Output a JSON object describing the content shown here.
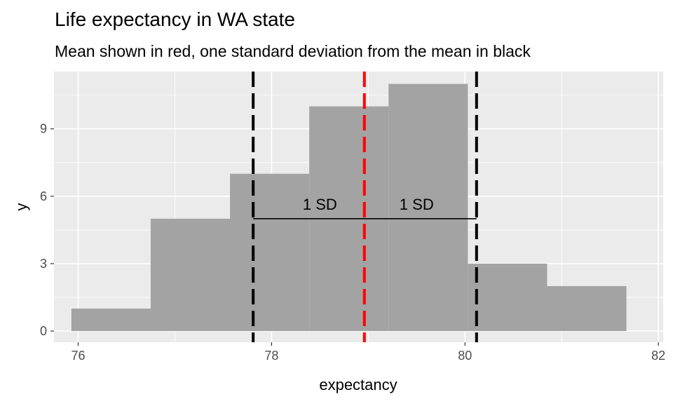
{
  "chart_data": {
    "type": "histogram",
    "title": "Life expectancy in WA state",
    "subtitle": "Mean shown in red, one standard deviation from the mean in black",
    "xlabel": "expectancy",
    "ylabel": "y",
    "xlim": [
      75.75,
      82.05
    ],
    "ylim": [
      -0.5,
      11.55
    ],
    "x_ticks": [
      76,
      78,
      80,
      82
    ],
    "y_ticks": [
      0,
      3,
      6,
      9
    ],
    "grid": true,
    "bins": [
      {
        "x0": 75.93,
        "x1": 76.75,
        "count": 1
      },
      {
        "x0": 76.75,
        "x1": 77.57,
        "count": 5
      },
      {
        "x0": 77.57,
        "x1": 78.39,
        "count": 7
      },
      {
        "x0": 78.39,
        "x1": 79.21,
        "count": 10
      },
      {
        "x0": 79.21,
        "x1": 80.03,
        "count": 11
      },
      {
        "x0": 80.03,
        "x1": 80.85,
        "count": 3
      },
      {
        "x0": 80.85,
        "x1": 81.67,
        "count": 2
      }
    ],
    "bar_color": "#a3a3a3",
    "mean": 78.96,
    "mean_color": "#ff0000",
    "sd_lower": 77.81,
    "sd_upper": 80.12,
    "sd_color": "#000000",
    "sd_segment_y": 5,
    "annotations": [
      {
        "text": "1 SD",
        "x": 78.5,
        "y": 5.4
      },
      {
        "text": "1 SD",
        "x": 79.5,
        "y": 5.4
      }
    ]
  }
}
